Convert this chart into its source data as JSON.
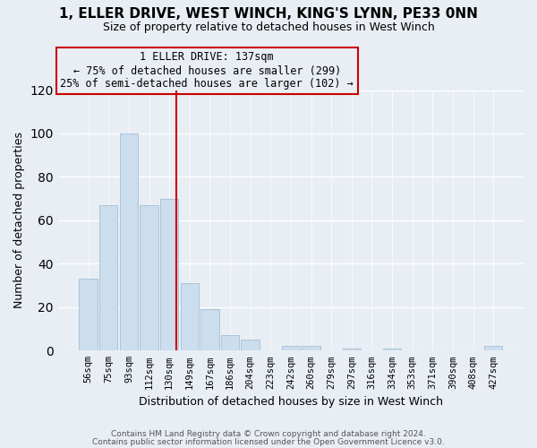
{
  "title": "1, ELLER DRIVE, WEST WINCH, KING'S LYNN, PE33 0NN",
  "subtitle": "Size of property relative to detached houses in West Winch",
  "xlabel": "Distribution of detached houses by size in West Winch",
  "ylabel": "Number of detached properties",
  "bar_color": "#ccdded",
  "bar_edge_color": "#aac4da",
  "categories": [
    "56sqm",
    "75sqm",
    "93sqm",
    "112sqm",
    "130sqm",
    "149sqm",
    "167sqm",
    "186sqm",
    "204sqm",
    "223sqm",
    "242sqm",
    "260sqm",
    "279sqm",
    "297sqm",
    "316sqm",
    "334sqm",
    "353sqm",
    "371sqm",
    "390sqm",
    "408sqm",
    "427sqm"
  ],
  "values": [
    33,
    67,
    100,
    67,
    70,
    31,
    19,
    7,
    5,
    0,
    2,
    2,
    0,
    1,
    0,
    1,
    0,
    0,
    0,
    0,
    2
  ],
  "vline_color": "#cc0000",
  "annotation_title": "1 ELLER DRIVE: 137sqm",
  "annotation_line1": "← 75% of detached houses are smaller (299)",
  "annotation_line2": "25% of semi-detached houses are larger (102) →",
  "annotation_box_color": "#cc0000",
  "ylim": [
    0,
    120
  ],
  "yticks": [
    0,
    20,
    40,
    60,
    80,
    100,
    120
  ],
  "footer1": "Contains HM Land Registry data © Crown copyright and database right 2024.",
  "footer2": "Contains public sector information licensed under the Open Government Licence v3.0.",
  "background_color": "#e8eef4",
  "plot_bg_color": "#e8eef4",
  "grid_color": "#ffffff"
}
